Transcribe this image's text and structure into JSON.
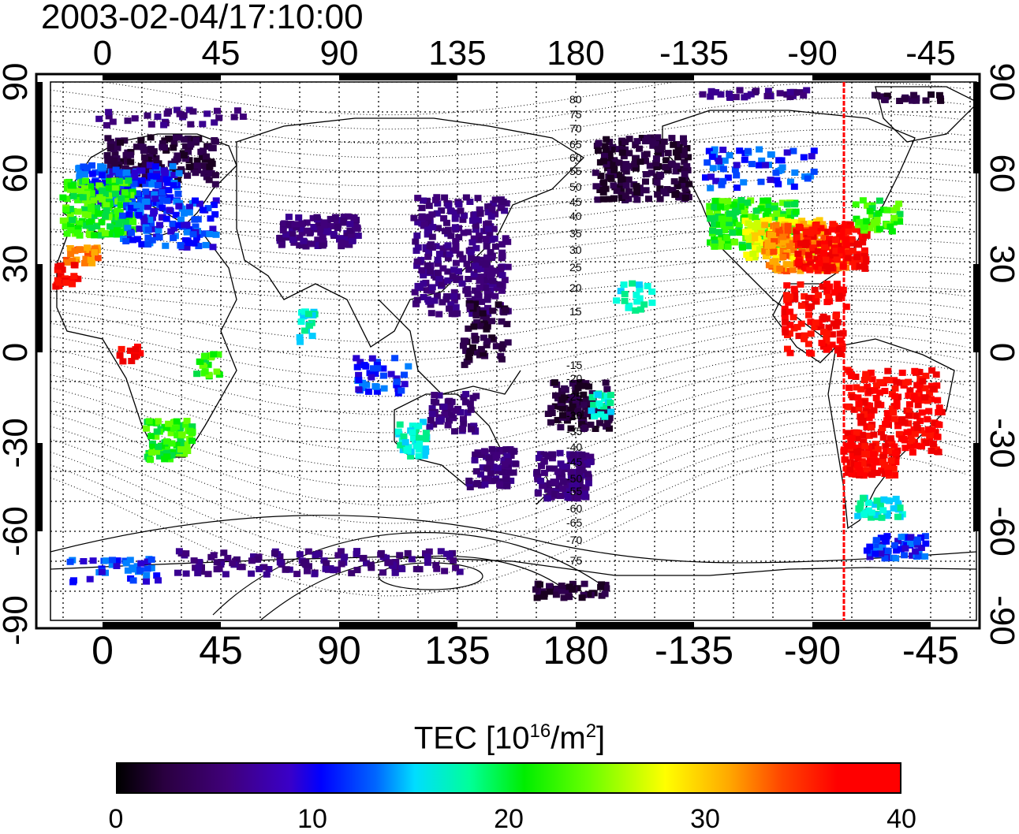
{
  "title": "2003-02-04/17:10:00",
  "top_ticks": [
    "0",
    "45",
    "90",
    "135",
    "180",
    "-135",
    "-90",
    "-45"
  ],
  "bottom_ticks": [
    "0",
    "45",
    "90",
    "135",
    "180",
    "-135",
    "-90",
    "-45"
  ],
  "left_ticks": [
    "90",
    "60",
    "30",
    "0",
    "-30",
    "-60",
    "-90"
  ],
  "right_ticks": [
    "90",
    "60",
    "30",
    "0",
    "-30",
    "-60",
    "-90"
  ],
  "contour_labels_north": [
    "80",
    "75",
    "70",
    "65",
    "60",
    "55",
    "50",
    "45",
    "40",
    "35",
    "30",
    "25",
    "20",
    "15"
  ],
  "contour_labels_south": [
    "-15",
    "-20",
    "-25",
    "-30",
    "-35",
    "-40",
    "-45",
    "-50",
    "-55",
    "-60",
    "-65",
    "-70",
    "-75"
  ],
  "colorbar": {
    "label": "TEC  [10",
    "label_exp1": "16",
    "label_mid": "/m",
    "label_exp2": "2",
    "label_end": "]",
    "ticks": [
      "0",
      "10",
      "20",
      "30",
      "40"
    ]
  },
  "colors": {
    "terminator": "#ff0000",
    "accent_high": "#ff0000",
    "accent_low": "#000000"
  },
  "meridian_line_lon": -75
}
